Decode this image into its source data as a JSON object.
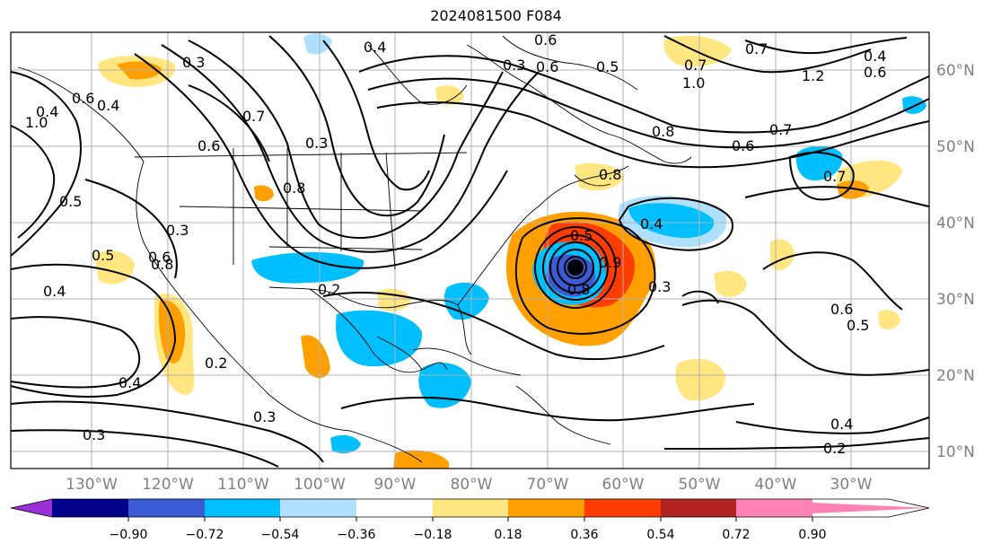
{
  "title": "2024081500 F084",
  "longitude_labels": [
    "130°W",
    "120°W",
    "110°W",
    "100°W",
    "90°W",
    "80°W",
    "70°W",
    "60°W",
    "50°W",
    "40°W",
    "30°W"
  ],
  "latitude_labels": [
    "60°N",
    "50°N",
    "40°N",
    "30°N",
    "20°N",
    "10°N"
  ],
  "colorbar": {
    "colors": [
      "#9b30d9",
      "#00008b",
      "#3a5bd1",
      "#00bfff",
      "#b0e0ff",
      "#ffffff",
      "#ffe680",
      "#ffa000",
      "#ff3c00",
      "#b22222",
      "#ff82b4"
    ],
    "tick_labels": [
      "−0.90",
      "−0.72",
      "−0.54",
      "−0.36",
      "−0.18",
      "0.18",
      "0.36",
      "0.54",
      "0.72",
      "0.90"
    ]
  },
  "contour_labels": [
    "0.3",
    "0.4",
    "0.6",
    "0.6",
    "0.5",
    "0.7",
    "1.0",
    "1.2",
    "0.4",
    "0.6",
    "0.8",
    "0.7",
    "0.6",
    "0.8",
    "0.4",
    "0.7",
    "0.6",
    "0.7",
    "0.6",
    "1.0",
    "0.5",
    "0.4",
    "0.3",
    "0.8",
    "0.5",
    "0.6",
    "0.4",
    "0.2",
    "0.4",
    "0.2",
    "0.3",
    "0.3",
    "0.5",
    "0.9",
    "0.8",
    "0.3",
    "0.6",
    "0.5",
    "0.4",
    "0.2",
    "0.4",
    "0.3",
    "0.7",
    "0.3",
    "0.8"
  ]
}
